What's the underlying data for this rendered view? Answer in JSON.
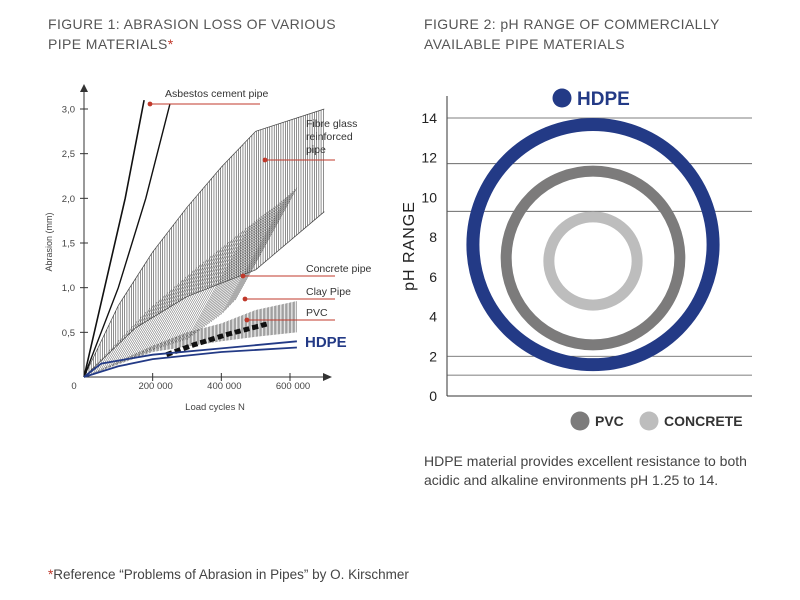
{
  "figure1": {
    "title_line1": "FIGURE 1: ABRASION LOSS OF VARIOUS",
    "title_line2": "PIPE MATERIALS",
    "title_mark": "*"
  },
  "figure2": {
    "title_line1": "FIGURE 2: pH RANGE OF COMMERCIALLY",
    "title_line2": "AVAILABLE PIPE MATERIALS"
  },
  "description": "HDPE material provides excellent resistance to both acidic and alkaline environments pH 1.25 to 14.",
  "footnote": {
    "mark": "*",
    "text": "Reference “Problems of Abrasion in Pipes” by O. Kirschmer"
  },
  "colors": {
    "hdpe": "#233a86",
    "pvc": "#7c7b7b",
    "concrete": "#bdbdbd",
    "label_line": "#c0392b",
    "axis": "#333333"
  },
  "chart_data": [
    {
      "type": "area",
      "xlabel": "Load cycles N",
      "ylabel": "Abrasion (mm)",
      "xlim": [
        0,
        700000
      ],
      "ylim": [
        0,
        3.2
      ],
      "x_ticks": [
        0,
        200000,
        400000,
        600000
      ],
      "x_tick_labels": [
        "0",
        "200 000",
        "400 000",
        "600 000"
      ],
      "y_ticks": [
        0.5,
        1.0,
        1.5,
        2.0,
        2.5,
        3.0
      ],
      "y_tick_labels": [
        "0,5",
        "1,0",
        "1,5",
        "2,0",
        "2,5",
        "3,0"
      ],
      "series": [
        {
          "name": "Asbestos cement pipe",
          "style": "line",
          "points": [
            [
              0,
              0
            ],
            [
              60000,
              1.0
            ],
            [
              120000,
              2.0
            ],
            [
              175000,
              3.1
            ]
          ]
        },
        {
          "name": "Fibre glass reinforced pipe",
          "style": "band",
          "upper": [
            [
              0,
              0
            ],
            [
              100000,
              0.8
            ],
            [
              200000,
              1.4
            ],
            [
              300000,
              1.9
            ],
            [
              400000,
              2.35
            ],
            [
              500000,
              2.75
            ],
            [
              700000,
              3.0
            ]
          ],
          "lower": [
            [
              0,
              0
            ],
            [
              150000,
              0.55
            ],
            [
              300000,
              0.9
            ],
            [
              400000,
              1.05
            ],
            [
              500000,
              1.2
            ],
            [
              700000,
              1.85
            ]
          ]
        },
        {
          "name": "Concrete pipe",
          "style": "band",
          "upper": [
            [
              0,
              0
            ],
            [
              100000,
              0.75
            ],
            [
              200000,
              1.25
            ],
            [
              300000,
              1.7
            ],
            [
              400000,
              2.0
            ],
            [
              500000,
              2.3
            ],
            [
              550000,
              2.0
            ],
            [
              500000,
              1.5
            ],
            [
              450000,
              1.0
            ],
            [
              420000,
              0.8
            ]
          ],
          "lower": [
            [
              0,
              0
            ],
            [
              200000,
              0.3
            ],
            [
              300000,
              0.42
            ],
            [
              420000,
              0.8
            ]
          ]
        },
        {
          "name": "Clay Pipe",
          "style": "band",
          "upper": [
            [
              0,
              0
            ],
            [
              200000,
              0.35
            ],
            [
              300000,
              0.5
            ],
            [
              400000,
              0.6
            ],
            [
              500000,
              0.75
            ],
            [
              620000,
              0.85
            ]
          ],
          "lower": [
            [
              0,
              0
            ],
            [
              200000,
              0.28
            ],
            [
              400000,
              0.4
            ],
            [
              500000,
              0.45
            ],
            [
              620000,
              0.5
            ]
          ]
        },
        {
          "name": "PVC",
          "style": "dashed",
          "points": [
            [
              240000,
              0.25
            ],
            [
              320000,
              0.36
            ],
            [
              420000,
              0.48
            ],
            [
              540000,
              0.6
            ]
          ]
        },
        {
          "name": "HDPE",
          "style": "line",
          "points": [
            [
              0,
              0
            ],
            [
              50000,
              0.15
            ],
            [
              200000,
              0.25
            ],
            [
              400000,
              0.32
            ],
            [
              620000,
              0.4
            ]
          ]
        },
        {
          "name": "HDPE lower",
          "style": "line",
          "points": [
            [
              0,
              0
            ],
            [
              100000,
              0.12
            ],
            [
              200000,
              0.2
            ],
            [
              400000,
              0.28
            ],
            [
              620000,
              0.33
            ]
          ]
        }
      ],
      "labels": [
        "Asbestos cement pipe",
        "Fibre glass",
        "reinforced",
        "pipe",
        "Concrete pipe",
        "Clay Pipe",
        "PVC",
        "HDPE"
      ]
    },
    {
      "type": "ring",
      "ylabel": "pH RANGE",
      "ylim": [
        0,
        15
      ],
      "y_ticks": [
        0,
        2,
        4,
        6,
        8,
        10,
        12,
        14
      ],
      "y_tick_labels": [
        "0",
        "2",
        "4",
        "6",
        "8",
        "10",
        "12",
        "14"
      ],
      "gridlines": [
        1.05,
        2.0,
        9.3,
        11.7,
        14
      ],
      "series": [
        {
          "name": "HDPE",
          "range": [
            1.25,
            14
          ],
          "color": "#233a86"
        },
        {
          "name": "PVC",
          "range": [
            2.3,
            11.6
          ],
          "color": "#7c7b7b"
        },
        {
          "name": "CONCRETE",
          "range": [
            4.3,
            9.3
          ],
          "color": "#bdbdbd"
        }
      ],
      "legend": {
        "top": "HDPE",
        "bottom": [
          "PVC",
          "CONCRETE"
        ]
      }
    }
  ]
}
